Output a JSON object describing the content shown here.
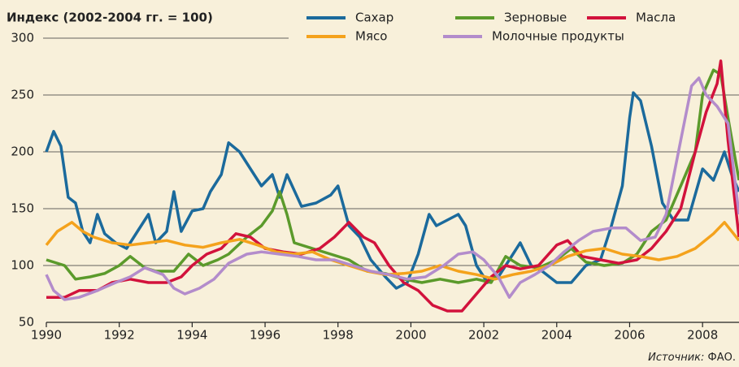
{
  "chart_data": {
    "type": "line",
    "title": "Индекс (2002-2004 гг. = 100)",
    "source_label": "Источник:",
    "source": "ФАО.",
    "xlim": [
      1990,
      2009
    ],
    "xticks": [
      1990,
      1992,
      1994,
      1996,
      1998,
      2000,
      2002,
      2004,
      2006,
      2008
    ],
    "ylim": [
      50,
      300
    ],
    "yticks": [
      50,
      100,
      150,
      200,
      250,
      300
    ],
    "grid": true,
    "series": [
      {
        "name": "Сахар",
        "color": "#1b6a9c",
        "x": [
          1990,
          1990.2,
          1990.4,
          1990.6,
          1990.8,
          1991.0,
          1991.2,
          1991.4,
          1991.6,
          1991.9,
          1992.2,
          1992.5,
          1992.8,
          1993.0,
          1993.3,
          1993.5,
          1993.7,
          1994.0,
          1994.3,
          1994.5,
          1994.8,
          1995.0,
          1995.3,
          1995.6,
          1995.9,
          1996.2,
          1996.4,
          1996.6,
          1997.0,
          1997.4,
          1997.8,
          1998.0,
          1998.3,
          1998.6,
          1998.9,
          1999.3,
          1999.6,
          1999.9,
          2000.2,
          2000.5,
          2000.7,
          2001.0,
          2001.3,
          2001.5,
          2001.8,
          2002.1,
          2002.4,
          2002.7,
          2003.0,
          2003.3,
          2003.6,
          2004.0,
          2004.4,
          2004.8,
          2005.2,
          2005.5,
          2005.8,
          2006.0,
          2006.1,
          2006.3,
          2006.6,
          2006.9,
          2007.2,
          2007.6,
          2008.0,
          2008.3,
          2008.6,
          2008.8,
          2009.0
        ],
        "values": [
          200,
          218,
          205,
          160,
          155,
          130,
          120,
          145,
          128,
          120,
          115,
          130,
          145,
          120,
          130,
          165,
          130,
          148,
          150,
          165,
          180,
          208,
          200,
          185,
          170,
          180,
          160,
          180,
          152,
          155,
          162,
          170,
          135,
          125,
          105,
          90,
          80,
          85,
          110,
          145,
          135,
          140,
          145,
          135,
          100,
          85,
          90,
          105,
          120,
          100,
          95,
          85,
          85,
          100,
          105,
          135,
          170,
          230,
          252,
          245,
          205,
          155,
          140,
          140,
          185,
          175,
          200,
          180,
          165
        ]
      },
      {
        "name": "Зерновые",
        "color": "#5b9a2b",
        "x": [
          1990,
          1990.5,
          1990.8,
          1991.2,
          1991.6,
          1992.0,
          1992.3,
          1992.7,
          1993.0,
          1993.5,
          1993.9,
          1994.3,
          1994.7,
          1995.0,
          1995.5,
          1995.9,
          1996.2,
          1996.4,
          1996.6,
          1996.8,
          1997.3,
          1997.8,
          1998.3,
          1998.8,
          1999.3,
          1999.8,
          2000.3,
          2000.8,
          2001.3,
          2001.8,
          2002.2,
          2002.6,
          2003.0,
          2003.5,
          2004.0,
          2004.4,
          2004.8,
          2005.3,
          2005.8,
          2006.2,
          2006.6,
          2007.0,
          2007.4,
          2007.8,
          2008.0,
          2008.3,
          2008.5,
          2008.7,
          2009.0
        ],
        "values": [
          105,
          100,
          88,
          90,
          93,
          100,
          108,
          98,
          95,
          95,
          110,
          100,
          105,
          110,
          125,
          135,
          148,
          165,
          145,
          120,
          115,
          110,
          105,
          95,
          93,
          88,
          85,
          88,
          85,
          88,
          85,
          108,
          100,
          98,
          105,
          115,
          103,
          100,
          102,
          110,
          130,
          140,
          170,
          200,
          250,
          272,
          268,
          230,
          175
        ]
      },
      {
        "name": "Масла",
        "color": "#d2123c",
        "x": [
          1990,
          1990.5,
          1990.9,
          1991.4,
          1991.8,
          1992.3,
          1992.8,
          1993.3,
          1993.7,
          1994.0,
          1994.4,
          1994.8,
          1995.2,
          1995.6,
          1996.0,
          1996.5,
          1997.0,
          1997.5,
          1997.9,
          1998.3,
          1998.7,
          1999.0,
          1999.4,
          1999.8,
          2000.2,
          2000.6,
          2001.0,
          2001.4,
          2001.8,
          2002.2,
          2002.6,
          2003.0,
          2003.5,
          2004.0,
          2004.3,
          2004.7,
          2005.2,
          2005.7,
          2006.2,
          2006.6,
          2007.0,
          2007.4,
          2007.8,
          2008.1,
          2008.4,
          2008.5,
          2008.7,
          2009.0
        ],
        "values": [
          72,
          72,
          78,
          78,
          85,
          88,
          85,
          85,
          90,
          100,
          110,
          115,
          128,
          125,
          115,
          112,
          110,
          115,
          125,
          138,
          125,
          120,
          100,
          85,
          78,
          65,
          60,
          60,
          75,
          90,
          100,
          97,
          100,
          118,
          122,
          108,
          105,
          102,
          105,
          115,
          130,
          150,
          200,
          235,
          260,
          280,
          210,
          125
        ]
      },
      {
        "name": "Мясо",
        "color": "#f4a21c",
        "x": [
          1990,
          1990.3,
          1990.7,
          1991.0,
          1991.3,
          1991.8,
          1992.3,
          1992.8,
          1993.3,
          1993.8,
          1994.3,
          1994.8,
          1995.3,
          1995.8,
          1996.3,
          1996.8,
          1997.3,
          1997.8,
          1998.3,
          1998.8,
          1999.3,
          1999.8,
          2000.3,
          2000.8,
          2001.3,
          2001.8,
          2002.3,
          2002.8,
          2003.3,
          2003.8,
          2004.3,
          2004.8,
          2005.3,
          2005.8,
          2006.3,
          2006.8,
          2007.3,
          2007.8,
          2008.3,
          2008.6,
          2009.0
        ],
        "values": [
          118,
          130,
          138,
          130,
          125,
          120,
          118,
          120,
          122,
          118,
          116,
          120,
          123,
          118,
          112,
          110,
          112,
          105,
          100,
          95,
          92,
          93,
          95,
          100,
          95,
          92,
          88,
          92,
          95,
          100,
          108,
          113,
          115,
          110,
          108,
          105,
          108,
          115,
          128,
          138,
          122
        ]
      },
      {
        "name": "Молочные продукты",
        "color": "#b38ccb",
        "x": [
          1990,
          1990.2,
          1990.5,
          1990.9,
          1991.4,
          1991.9,
          1992.3,
          1992.7,
          1993.2,
          1993.5,
          1993.8,
          1994.2,
          1994.6,
          1995.0,
          1995.5,
          1995.9,
          1996.4,
          1996.9,
          1997.4,
          1997.9,
          1998.4,
          1998.9,
          1999.4,
          1999.9,
          2000.4,
          2000.9,
          2001.3,
          2001.7,
          2002.0,
          2002.4,
          2002.7,
          2003.0,
          2003.4,
          2003.8,
          2004.2,
          2004.6,
          2005.0,
          2005.5,
          2005.9,
          2006.3,
          2006.7,
          2007.0,
          2007.4,
          2007.7,
          2007.9,
          2008.1,
          2008.4,
          2008.7,
          2009.0
        ],
        "values": [
          92,
          78,
          70,
          72,
          78,
          85,
          90,
          98,
          92,
          80,
          75,
          80,
          88,
          102,
          110,
          112,
          110,
          108,
          105,
          105,
          100,
          95,
          92,
          88,
          90,
          100,
          110,
          112,
          105,
          90,
          72,
          85,
          92,
          100,
          112,
          122,
          130,
          133,
          133,
          122,
          125,
          145,
          210,
          258,
          265,
          250,
          240,
          225,
          145
        ]
      }
    ]
  }
}
